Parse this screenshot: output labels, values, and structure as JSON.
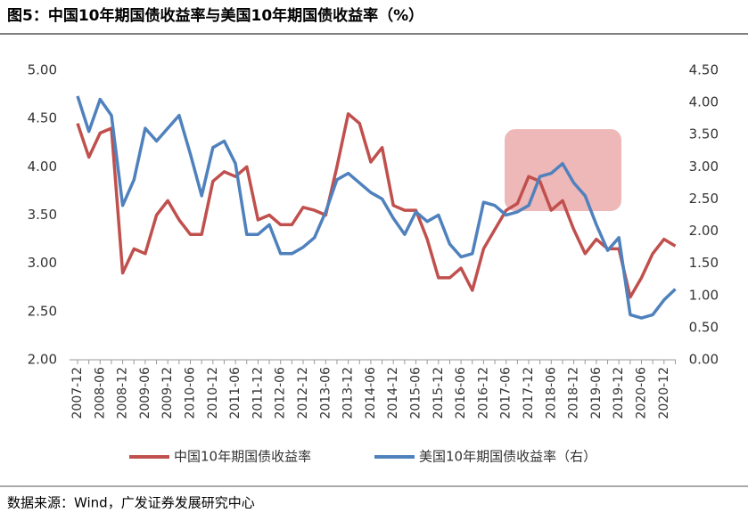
{
  "chart_data": {
    "type": "line",
    "title": "图5：中国10年期国债收益率与美国10年期国债收益率（%）",
    "source": "数据来源：Wind，广发证券发展研究中心",
    "categories": [
      "2007-12",
      null,
      "2008-06",
      null,
      "2008-12",
      null,
      "2009-06",
      null,
      "2009-12",
      null,
      "2010-06",
      null,
      "2010-12",
      null,
      "2011-06",
      null,
      "2011-12",
      null,
      "2012-06",
      null,
      "2012-12",
      null,
      "2013-06",
      null,
      "2013-12",
      null,
      "2014-06",
      null,
      "2014-12",
      null,
      "2015-06",
      null,
      "2015-12",
      null,
      "2016-06",
      null,
      "2016-12",
      null,
      "2017-06",
      null,
      "2017-12",
      null,
      "2018-06",
      null,
      "2018-12",
      null,
      "2019-06",
      null,
      "2019-12",
      null,
      "2020-06",
      null,
      "2020-12",
      null
    ],
    "series": [
      {
        "name": "中国10年期国债收益率",
        "color": "#c0504d",
        "values": [
          4.45,
          4.1,
          4.35,
          4.4,
          2.9,
          3.15,
          3.1,
          3.5,
          3.65,
          3.45,
          3.3,
          3.3,
          3.85,
          3.95,
          3.9,
          4.0,
          3.45,
          3.5,
          3.4,
          3.4,
          3.58,
          3.55,
          3.5,
          4.0,
          4.55,
          4.45,
          4.05,
          4.2,
          3.6,
          3.55,
          3.55,
          3.25,
          2.85,
          2.85,
          2.95,
          2.72,
          3.15,
          3.35,
          3.55,
          3.62,
          3.9,
          3.85,
          3.55,
          3.65,
          3.35,
          3.1,
          3.25,
          3.15,
          3.15,
          2.65,
          2.85,
          3.1,
          3.25,
          3.18
        ]
      },
      {
        "name": "美国10年期国债收益率（右）",
        "color": "#4f81bd",
        "axis": "y2",
        "values": [
          4.1,
          3.55,
          4.05,
          3.8,
          2.4,
          2.8,
          3.6,
          3.4,
          3.6,
          3.8,
          3.2,
          2.55,
          3.3,
          3.4,
          3.05,
          1.95,
          1.95,
          2.1,
          1.65,
          1.65,
          1.75,
          1.9,
          2.3,
          2.8,
          2.9,
          2.75,
          2.6,
          2.5,
          2.2,
          1.95,
          2.3,
          2.15,
          2.25,
          1.8,
          1.6,
          1.65,
          2.45,
          2.4,
          2.25,
          2.3,
          2.4,
          2.85,
          2.9,
          3.05,
          2.75,
          2.55,
          2.1,
          1.7,
          1.9,
          0.7,
          0.65,
          0.7,
          0.93,
          1.1
        ]
      }
    ],
    "ylim": [
      2,
      5
    ],
    "yticks": [
      {
        "value": 2,
        "label": "2.00"
      },
      {
        "value": 2.5,
        "label": "2.50"
      },
      {
        "value": 3,
        "label": "3.00"
      },
      {
        "value": 3.5,
        "label": "3.50"
      },
      {
        "value": 4,
        "label": "4.00"
      },
      {
        "value": 4.5,
        "label": "4.50"
      },
      {
        "value": 5,
        "label": "5.00"
      }
    ],
    "y2lim": [
      0,
      4.5
    ],
    "y2ticks": [
      {
        "value": 0,
        "label": "0.00"
      },
      {
        "value": 0.5,
        "label": "0.50"
      },
      {
        "value": 1,
        "label": "1.00"
      },
      {
        "value": 1.5,
        "label": "1.50"
      },
      {
        "value": 2,
        "label": "2.00"
      },
      {
        "value": 2.5,
        "label": "2.50"
      },
      {
        "value": 3,
        "label": "3.00"
      },
      {
        "value": 3.5,
        "label": "3.50"
      },
      {
        "value": 4,
        "label": "4.00"
      },
      {
        "value": 4.5,
        "label": "4.50"
      }
    ],
    "grid": false,
    "legend": "bottom"
  }
}
